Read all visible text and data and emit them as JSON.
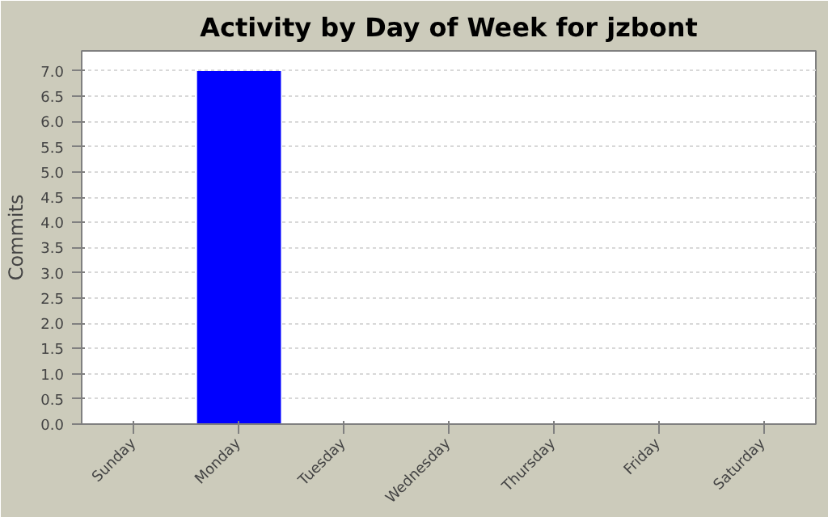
{
  "chart_data": {
    "type": "bar",
    "title": "Activity by Day of Week for jzbont",
    "ylabel": "Commits",
    "categories": [
      "Sunday",
      "Monday",
      "Tuesday",
      "Wednesday",
      "Thursday",
      "Friday",
      "Saturday"
    ],
    "values": [
      0,
      7,
      0,
      0,
      0,
      0,
      0
    ],
    "color": "#0000ff",
    "ylim": [
      0,
      7.4
    ],
    "yticks": [
      {
        "value": 0,
        "label": "0.0"
      },
      {
        "value": 0.5,
        "label": "0.5"
      },
      {
        "value": 1,
        "label": "1.0"
      },
      {
        "value": 1.5,
        "label": "1.5"
      },
      {
        "value": 2,
        "label": "2.0"
      },
      {
        "value": 2.5,
        "label": "2.5"
      },
      {
        "value": 3,
        "label": "3.0"
      },
      {
        "value": 3.5,
        "label": "3.5"
      },
      {
        "value": 4,
        "label": "4.0"
      },
      {
        "value": 4.5,
        "label": "4.5"
      },
      {
        "value": 5,
        "label": "5.0"
      },
      {
        "value": 5.5,
        "label": "5.5"
      },
      {
        "value": 6,
        "label": "6.0"
      },
      {
        "value": 6.5,
        "label": "6.5"
      },
      {
        "value": 7,
        "label": "7.0"
      }
    ],
    "grid": "y"
  }
}
